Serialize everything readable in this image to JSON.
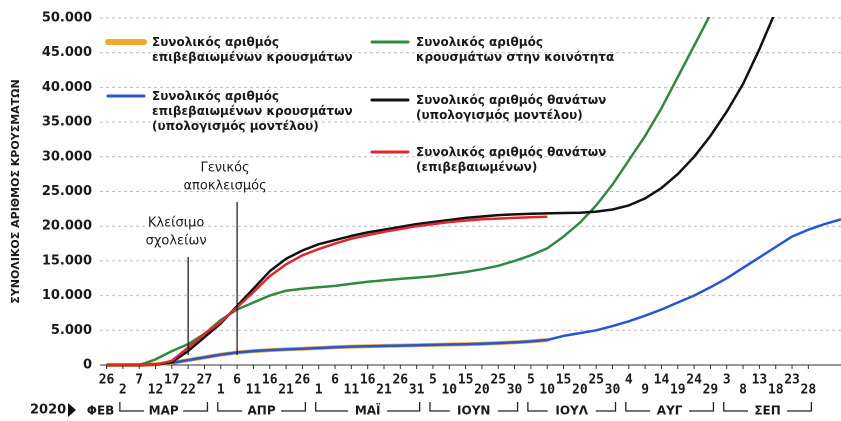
{
  "chart_data": {
    "type": "line",
    "y_axis_label": "ΣΥΝΟΛΙΚΟΣ ΑΡΙΘΜΟΣ ΚΡΟΥΣΜΑΤΩΝ",
    "year_label": "2020",
    "x": [
      "2020-02-26",
      "2020-03-02",
      "2020-03-07",
      "2020-03-12",
      "2020-03-17",
      "2020-03-22",
      "2020-03-27",
      "2020-04-01",
      "2020-04-06",
      "2020-04-11",
      "2020-04-16",
      "2020-04-21",
      "2020-04-26",
      "2020-05-01",
      "2020-05-06",
      "2020-05-11",
      "2020-05-16",
      "2020-05-21",
      "2020-05-26",
      "2020-05-31",
      "2020-06-05",
      "2020-06-10",
      "2020-06-15",
      "2020-06-20",
      "2020-06-25",
      "2020-06-30",
      "2020-07-05",
      "2020-07-10",
      "2020-07-15",
      "2020-07-20",
      "2020-07-25",
      "2020-07-30",
      "2020-08-04",
      "2020-08-09",
      "2020-08-14",
      "2020-08-19",
      "2020-08-24",
      "2020-08-29",
      "2020-09-03",
      "2020-09-08",
      "2020-09-13",
      "2020-09-18",
      "2020-09-23",
      "2020-09-28",
      "2020-10-03",
      "2020-10-08"
    ],
    "xlim": [
      "2020-02-24",
      "2020-10-08"
    ],
    "xticks": [
      {
        "value": "2020-02-26",
        "label": "26"
      },
      {
        "value": "2020-03-02",
        "label": "2"
      },
      {
        "value": "2020-03-07",
        "label": "7"
      },
      {
        "value": "2020-03-12",
        "label": "12"
      },
      {
        "value": "2020-03-17",
        "label": "17"
      },
      {
        "value": "2020-03-22",
        "label": "22"
      },
      {
        "value": "2020-03-27",
        "label": "27"
      },
      {
        "value": "2020-04-01",
        "label": "1"
      },
      {
        "value": "2020-04-06",
        "label": "6"
      },
      {
        "value": "2020-04-11",
        "label": "11"
      },
      {
        "value": "2020-04-16",
        "label": "16"
      },
      {
        "value": "2020-04-21",
        "label": "21"
      },
      {
        "value": "2020-04-26",
        "label": "26"
      },
      {
        "value": "2020-05-01",
        "label": "1"
      },
      {
        "value": "2020-05-06",
        "label": "6"
      },
      {
        "value": "2020-05-11",
        "label": "11"
      },
      {
        "value": "2020-05-16",
        "label": "16"
      },
      {
        "value": "2020-05-21",
        "label": "21"
      },
      {
        "value": "2020-05-26",
        "label": "26"
      },
      {
        "value": "2020-05-31",
        "label": "31"
      },
      {
        "value": "2020-06-05",
        "label": "5"
      },
      {
        "value": "2020-06-10",
        "label": "10"
      },
      {
        "value": "2020-06-15",
        "label": "15"
      },
      {
        "value": "2020-06-20",
        "label": "20"
      },
      {
        "value": "2020-06-25",
        "label": "25"
      },
      {
        "value": "2020-06-30",
        "label": "30"
      },
      {
        "value": "2020-07-05",
        "label": "5"
      },
      {
        "value": "2020-07-10",
        "label": "10"
      },
      {
        "value": "2020-07-15",
        "label": "15"
      },
      {
        "value": "2020-07-20",
        "label": "20"
      },
      {
        "value": "2020-07-25",
        "label": "25"
      },
      {
        "value": "2020-07-30",
        "label": "30"
      },
      {
        "value": "2020-08-04",
        "label": "4"
      },
      {
        "value": "2020-08-09",
        "label": "9"
      },
      {
        "value": "2020-08-14",
        "label": "14"
      },
      {
        "value": "2020-08-19",
        "label": "19"
      },
      {
        "value": "2020-08-24",
        "label": "24"
      },
      {
        "value": "2020-08-29",
        "label": "29"
      },
      {
        "value": "2020-09-03",
        "label": "3"
      },
      {
        "value": "2020-09-08",
        "label": "8"
      },
      {
        "value": "2020-09-13",
        "label": "13"
      },
      {
        "value": "2020-09-18",
        "label": "18"
      },
      {
        "value": "2020-09-23",
        "label": "23"
      },
      {
        "value": "2020-09-28",
        "label": "28"
      }
    ],
    "months": [
      {
        "label": "ΦΕΒ",
        "month": "2020-02"
      },
      {
        "label": "ΜΑΡ",
        "month": "2020-03"
      },
      {
        "label": "ΑΠΡ",
        "month": "2020-04"
      },
      {
        "label": "ΜΑΪ",
        "month": "2020-05"
      },
      {
        "label": "ΙΟΥΝ",
        "month": "2020-06"
      },
      {
        "label": "ΙΟΥΛ",
        "month": "2020-07"
      },
      {
        "label": "ΑΥΓ",
        "month": "2020-08"
      },
      {
        "label": "ΣΕΠ",
        "month": "2020-09"
      }
    ],
    "ylim": [
      0,
      50000
    ],
    "yticks": [
      0,
      {
        "value": 5000,
        "label": "5.000"
      },
      {
        "value": 10000,
        "label": "10.000"
      },
      {
        "value": 15000,
        "label": "15.000"
      },
      {
        "value": 20000,
        "label": "20.000"
      },
      {
        "value": 25000,
        "label": "25.000"
      },
      {
        "value": 30000,
        "label": "30.000"
      },
      {
        "value": 35000,
        "label": "35.000"
      },
      {
        "value": 40000,
        "label": "40.000"
      },
      {
        "value": 45000,
        "label": "45.000"
      },
      {
        "value": 50000,
        "label": "50.000"
      }
    ],
    "grid": true,
    "annotations": [
      {
        "x": "2020-03-22",
        "lines": [
          "Κλείσιμο",
          "σχολείων"
        ]
      },
      {
        "x": "2020-04-06",
        "lines": [
          "Γενικός",
          "αποκλεισμός"
        ]
      }
    ],
    "series": [
      {
        "name": "Συνολικός αριθμός\nεπιβεβαιωμένων κρουσμάτων",
        "color": "#f0a830",
        "values": [
          0,
          0,
          0,
          100,
          300,
          700,
          1100,
          1500,
          1800,
          2000,
          2150,
          2250,
          2350,
          2450,
          2550,
          2650,
          2700,
          2750,
          2800,
          2850,
          2900,
          2950,
          3000,
          3050,
          3150,
          3250,
          3400,
          3600,
          null,
          null,
          null,
          null,
          null,
          null,
          null,
          null,
          null,
          null,
          null,
          null,
          null,
          null,
          null,
          null,
          null,
          null
        ]
      },
      {
        "name": "Συνολικός αριθμός\nεπιβεβαιωμένων κρουσμάτων\n(υπολογισμός μοντέλου)",
        "color": "#2457d6",
        "values": [
          0,
          0,
          0,
          100,
          300,
          700,
          1100,
          1500,
          1800,
          2000,
          2150,
          2250,
          2350,
          2450,
          2550,
          2650,
          2700,
          2750,
          2800,
          2850,
          2900,
          2950,
          3000,
          3050,
          3150,
          3250,
          3400,
          3600,
          4200,
          4600,
          5000,
          5600,
          6300,
          7100,
          8000,
          9000,
          10000,
          11200,
          12500,
          14000,
          15500,
          17000,
          18500,
          19500,
          20300,
          21000
        ]
      },
      {
        "name": "Συνολικός αριθμός\nκρουσμάτων στην κοινότητα",
        "color": "#2e8b3e",
        "values": [
          0,
          0,
          0,
          800,
          2000,
          3000,
          4500,
          6500,
          8000,
          9000,
          10000,
          10700,
          11000,
          11200,
          11400,
          11700,
          12000,
          12200,
          12400,
          12600,
          12800,
          13100,
          13400,
          13800,
          14300,
          15000,
          15800,
          16800,
          18500,
          20500,
          23000,
          26000,
          29500,
          33000,
          37000,
          41500,
          46000,
          50500,
          55000,
          null,
          null,
          null,
          null,
          null,
          null,
          null
        ]
      },
      {
        "name": "Συνολικός αριθμός θανάτων\n(υπολογισμός μοντέλου)",
        "color": "#111111",
        "values": [
          0,
          0,
          0,
          30,
          400,
          2000,
          4000,
          6000,
          8500,
          11000,
          13500,
          15300,
          16500,
          17400,
          18000,
          18600,
          19100,
          19500,
          19900,
          20300,
          20600,
          20900,
          21200,
          21400,
          21600,
          21700,
          21800,
          21850,
          21900,
          21950,
          22100,
          22400,
          23000,
          24000,
          25500,
          27500,
          30000,
          33000,
          36500,
          40500,
          45500,
          51000,
          null,
          null,
          null,
          null
        ]
      },
      {
        "name": "Συνολικός αριθμός θανάτων\n(επιβεβαιωμένων)",
        "color": "#e3262b",
        "values": [
          0,
          0,
          0,
          50,
          600,
          2500,
          4500,
          6200,
          8300,
          10500,
          12800,
          14500,
          15800,
          16700,
          17500,
          18200,
          18700,
          19200,
          19600,
          20000,
          20300,
          20600,
          20800,
          21000,
          21100,
          21200,
          21300,
          21350,
          null,
          null,
          null,
          null,
          null,
          null,
          null,
          null,
          null,
          null,
          null,
          null,
          null,
          null,
          null,
          null,
          null,
          null
        ]
      }
    ]
  }
}
